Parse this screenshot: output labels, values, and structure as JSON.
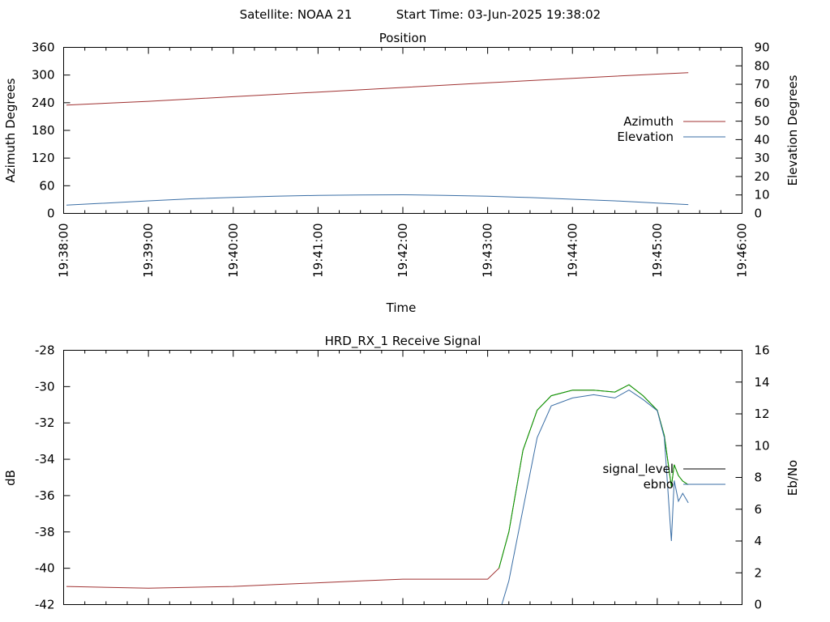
{
  "header": {
    "satellite": "Satellite: NOAA 21",
    "start_time": "Start Time: 03-Jun-2025 19:38:02"
  },
  "colors": {
    "azimuth": "#a03232",
    "elevation": "#3a6ea5",
    "signal_level": "#000000",
    "ebno": "#3a6ea5",
    "signal_trace_low": "#a03232",
    "signal_trace_high": "#00a000"
  },
  "chart_data": [
    {
      "id": "position",
      "type": "line",
      "title": "Position",
      "xlabel": "Time",
      "ylabel": "Azimuth Degrees",
      "y2label": "Elevation Degrees",
      "xlim": [
        "19:38:00",
        "19:46:00"
      ],
      "ylim": [
        0,
        360
      ],
      "y2lim": [
        0,
        90
      ],
      "x_ticks": [
        "19:38:00",
        "19:39:00",
        "19:40:00",
        "19:41:00",
        "19:42:00",
        "19:43:00",
        "19:44:00",
        "19:45:00",
        "19:46:00"
      ],
      "y_ticks": [
        "0",
        "60",
        "120",
        "180",
        "240",
        "300",
        "360"
      ],
      "y2_ticks": [
        "0",
        "10",
        "20",
        "30",
        "40",
        "50",
        "60",
        "70",
        "80",
        "90"
      ],
      "legend_position": "right",
      "series": [
        {
          "name": "Azimuth",
          "axis": "left",
          "x": [
            "19:38:02",
            "19:39:00",
            "19:40:00",
            "19:41:00",
            "19:42:00",
            "19:43:00",
            "19:44:00",
            "19:45:00",
            "19:45:22"
          ],
          "y": [
            235,
            243,
            253,
            263,
            273,
            283,
            293,
            302,
            305
          ]
        },
        {
          "name": "Elevation",
          "axis": "right",
          "x": [
            "19:38:02",
            "19:39:00",
            "19:39:30",
            "19:40:00",
            "19:40:30",
            "19:41:00",
            "19:41:30",
            "19:42:00",
            "19:42:30",
            "19:43:00",
            "19:43:30",
            "19:44:00",
            "19:44:30",
            "19:45:00",
            "19:45:22"
          ],
          "y": [
            4.5,
            6.8,
            7.9,
            8.7,
            9.3,
            9.8,
            10.0,
            10.1,
            9.8,
            9.3,
            8.6,
            7.7,
            6.8,
            5.6,
            4.8
          ]
        }
      ]
    },
    {
      "id": "signal",
      "type": "line",
      "title": "HRD_RX_1 Receive Signal",
      "ylabel": "dB",
      "y2label": "Eb/No",
      "xlim": [
        "19:38:00",
        "19:46:00"
      ],
      "ylim": [
        -42,
        -28
      ],
      "y2lim": [
        0,
        16
      ],
      "y_ticks": [
        "-42",
        "-40",
        "-38",
        "-36",
        "-34",
        "-32",
        "-30",
        "-28"
      ],
      "y2_ticks": [
        "0",
        "2",
        "4",
        "6",
        "8",
        "10",
        "12",
        "14",
        "16"
      ],
      "legend_position": "right",
      "series": [
        {
          "name": "signal_level",
          "axis": "left",
          "x": [
            "19:38:02",
            "19:39:00",
            "19:40:00",
            "19:40:30",
            "19:41:00",
            "19:41:30",
            "19:42:00",
            "19:42:30",
            "19:43:00",
            "19:43:08",
            "19:43:15",
            "19:43:25",
            "19:43:35",
            "19:43:45",
            "19:44:00",
            "19:44:15",
            "19:44:30",
            "19:44:40",
            "19:44:50",
            "19:45:00",
            "19:45:05",
            "19:45:10",
            "19:45:12",
            "19:45:15",
            "19:45:18",
            "19:45:22"
          ],
          "y": [
            -41.0,
            -41.1,
            -41.0,
            -40.9,
            -40.8,
            -40.7,
            -40.6,
            -40.6,
            -40.6,
            -40.0,
            -38.0,
            -33.5,
            -31.3,
            -30.5,
            -30.2,
            -30.2,
            -30.3,
            -29.9,
            -30.5,
            -31.3,
            -32.7,
            -35.5,
            -34.3,
            -34.9,
            -35.2,
            -35.4
          ]
        },
        {
          "name": "ebno",
          "axis": "right",
          "x": [
            "19:43:10",
            "19:43:15",
            "19:43:25",
            "19:43:35",
            "19:43:45",
            "19:44:00",
            "19:44:15",
            "19:44:30",
            "19:44:40",
            "19:44:50",
            "19:45:00",
            "19:45:05",
            "19:45:10",
            "19:45:12",
            "19:45:15",
            "19:45:18",
            "19:45:22"
          ],
          "y": [
            0,
            1.5,
            6.0,
            10.5,
            12.5,
            13.0,
            13.2,
            13.0,
            13.5,
            12.9,
            12.2,
            10.5,
            4.0,
            7.8,
            6.5,
            7.0,
            6.4
          ]
        }
      ]
    }
  ]
}
